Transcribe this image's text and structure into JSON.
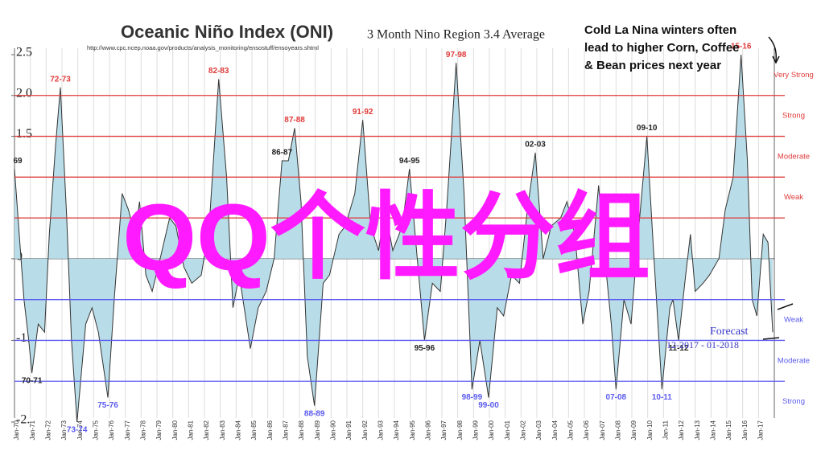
{
  "chart_data": {
    "type": "area",
    "title": "Oceanic Niño Index (ONI)",
    "subtitle": "3 Month Nino Region 3.4 Average",
    "source": "http://www.cpc.ncep.noaa.gov/products/analysis_monitoring/ensostuff/ensoyears.shtml",
    "callout": [
      "Cold La Nina winters often",
      "lead to higher Corn, Coffee",
      "& Bean prices next year"
    ],
    "watermark": "QQ个性分组",
    "forecast": {
      "label": "Forecast",
      "period": "12-2017 - 01-2018"
    },
    "series": [
      {
        "color": "#333333",
        "fill": "#b9dde8",
        "x": [
          1970.0,
          1970.3,
          1970.6,
          1970.9,
          1971.1,
          1971.5,
          1971.9,
          1972.2,
          1972.6,
          1972.9,
          1973.3,
          1973.6,
          1973.95,
          1974.5,
          1974.9,
          1975.3,
          1975.9,
          1976.3,
          1976.8,
          1977.2,
          1977.6,
          1977.9,
          1978.3,
          1978.7,
          1979.2,
          1979.8,
          1980.2,
          1980.7,
          1981.2,
          1981.8,
          1982.3,
          1982.9,
          1983.4,
          1983.8,
          1984.2,
          1984.9,
          1985.4,
          1985.9,
          1986.4,
          1986.9,
          1987.3,
          1987.7,
          1988.1,
          1988.5,
          1988.95,
          1989.5,
          1989.9,
          1990.5,
          1990.9,
          1991.5,
          1992.0,
          1992.5,
          1993.0,
          1993.4,
          1993.9,
          1994.5,
          1994.95,
          1995.4,
          1995.9,
          1996.4,
          1996.9,
          1997.3,
          1997.9,
          1998.4,
          1998.9,
          1999.4,
          1999.95,
          2000.5,
          2000.9,
          2001.4,
          2001.9,
          2002.4,
          2002.9,
          2003.4,
          2003.9,
          2004.5,
          2004.9,
          2005.4,
          2005.9,
          2006.3,
          2006.9,
          2007.3,
          2007.7,
          2008.0,
          2008.5,
          2008.95,
          2009.4,
          2009.95,
          2010.4,
          2010.9,
          2011.4,
          2011.6,
          2011.95,
          2012.4,
          2012.7,
          2013.0,
          2013.5,
          2013.9,
          2014.5,
          2014.9,
          2015.4,
          2015.9,
          2016.3,
          2016.6,
          2016.9,
          2017.3,
          2017.6,
          2017.9
        ],
        "values": [
          1.1,
          0.3,
          -0.5,
          -1.0,
          -1.4,
          -0.8,
          -0.9,
          0.3,
          1.4,
          2.1,
          0.5,
          -1.0,
          -2.0,
          -0.8,
          -0.6,
          -0.9,
          -1.7,
          -0.5,
          0.8,
          0.6,
          0.3,
          0.7,
          -0.2,
          -0.4,
          0.0,
          0.5,
          0.4,
          -0.1,
          -0.3,
          -0.2,
          0.4,
          2.2,
          1.0,
          -0.6,
          -0.2,
          -1.1,
          -0.6,
          -0.4,
          0.0,
          1.2,
          1.2,
          1.6,
          0.7,
          -1.2,
          -1.8,
          -0.3,
          -0.2,
          0.3,
          0.4,
          0.8,
          1.7,
          0.4,
          0.1,
          0.6,
          0.1,
          0.4,
          1.1,
          0.1,
          -1.0,
          -0.3,
          -0.4,
          0.6,
          2.4,
          0.8,
          -1.6,
          -1.0,
          -1.7,
          -0.6,
          -0.7,
          -0.2,
          -0.3,
          0.6,
          1.3,
          0.0,
          0.4,
          0.5,
          0.7,
          0.3,
          -0.8,
          -0.4,
          0.9,
          0.0,
          -0.8,
          -1.6,
          -0.5,
          -0.8,
          0.3,
          1.5,
          0.0,
          -1.6,
          -0.6,
          -0.5,
          -1.0,
          -0.2,
          0.3,
          -0.4,
          -0.3,
          -0.2,
          0.0,
          0.6,
          1.0,
          2.5,
          1.2,
          -0.5,
          -0.7,
          0.3,
          0.2,
          -0.9
        ]
      }
    ],
    "xlim": [
      1970,
      2018
    ],
    "xticks": [
      {
        "value": 1970,
        "label": "Jan-70"
      },
      {
        "value": 1971,
        "label": "Jan-71"
      },
      {
        "value": 1972,
        "label": "Jan-72"
      },
      {
        "value": 1973,
        "label": "Jan-73"
      },
      {
        "value": 1974,
        "label": "Jan-74"
      },
      {
        "value": 1975,
        "label": "Jan-75"
      },
      {
        "value": 1976,
        "label": "Jan-76"
      },
      {
        "value": 1977,
        "label": "Jan-77"
      },
      {
        "value": 1978,
        "label": "Jan-78"
      },
      {
        "value": 1979,
        "label": "Jan-79"
      },
      {
        "value": 1980,
        "label": "Jan-80"
      },
      {
        "value": 1981,
        "label": "Jan-81"
      },
      {
        "value": 1982,
        "label": "Jan-82"
      },
      {
        "value": 1983,
        "label": "Jan-83"
      },
      {
        "value": 1984,
        "label": "Jan-84"
      },
      {
        "value": 1985,
        "label": "Jan-85"
      },
      {
        "value": 1986,
        "label": "Jan-86"
      },
      {
        "value": 1987,
        "label": "Jan-87"
      },
      {
        "value": 1988,
        "label": "Jan-88"
      },
      {
        "value": 1989,
        "label": "Jan-89"
      },
      {
        "value": 1990,
        "label": "Jan-90"
      },
      {
        "value": 1991,
        "label": "Jan-91"
      },
      {
        "value": 1992,
        "label": "Jan-92"
      },
      {
        "value": 1993,
        "label": "Jan-93"
      },
      {
        "value": 1994,
        "label": "Jan-94"
      },
      {
        "value": 1995,
        "label": "Jan-95"
      },
      {
        "value": 1996,
        "label": "Jan-96"
      },
      {
        "value": 1997,
        "label": "Jan-97"
      },
      {
        "value": 1998,
        "label": "Jan-98"
      },
      {
        "value": 1999,
        "label": "Jan-99"
      },
      {
        "value": 2000,
        "label": "Jan-00"
      },
      {
        "value": 2001,
        "label": "Jan-01"
      },
      {
        "value": 2002,
        "label": "Jan-02"
      },
      {
        "value": 2003,
        "label": "Jan-03"
      },
      {
        "value": 2004,
        "label": "Jan-04"
      },
      {
        "value": 2005,
        "label": "Jan-05"
      },
      {
        "value": 2006,
        "label": "Jan-06"
      },
      {
        "value": 2007,
        "label": "Jan-07"
      },
      {
        "value": 2008,
        "label": "Jan-08"
      },
      {
        "value": 2009,
        "label": "Jan-09"
      },
      {
        "value": 2010,
        "label": "Jan-10"
      },
      {
        "value": 2011,
        "label": "Jan-11"
      },
      {
        "value": 2012,
        "label": "Jan-12"
      },
      {
        "value": 2013,
        "label": "Jan-13"
      },
      {
        "value": 2014,
        "label": "Jan-14"
      },
      {
        "value": 2015,
        "label": "Jan-15"
      },
      {
        "value": 2016,
        "label": "Jan-16"
      },
      {
        "value": 2017,
        "label": "Jan-17"
      }
    ],
    "ylim": [
      -2,
      2.5
    ],
    "yticks": [
      2.5,
      {
        "value": 2,
        "label": "2.0"
      },
      1.5,
      0,
      {
        "value": -1,
        "label": "-1."
      },
      {
        "value": -2,
        "label": "-2."
      }
    ],
    "grid": true,
    "thresholds": [
      {
        "value": 0.5,
        "color": "#e03a3a",
        "label": "Weak"
      },
      {
        "value": 1,
        "color": "#e03a3a",
        "label": "Moderate"
      },
      {
        "value": 1.5,
        "color": "#e03a3a",
        "label": "Strong"
      },
      {
        "value": 2,
        "color": "#e03a3a",
        "label": "Very Strong"
      },
      {
        "value": -0.5,
        "color": "#5b5bef",
        "label": "Weak"
      },
      {
        "value": -1,
        "color": "#5b5bef",
        "label": "Moderate"
      },
      {
        "value": -1.5,
        "color": "#5b5bef",
        "label": "Strong"
      }
    ],
    "peak_labels": [
      {
        "text": "69",
        "x": 1970.0,
        "y": 1.1,
        "color": "#222"
      },
      {
        "text": "72-73",
        "x": 1972.9,
        "y": 2.1,
        "color": "#e03a3a"
      },
      {
        "text": "82-83",
        "x": 1982.9,
        "y": 2.2,
        "color": "#e03a3a"
      },
      {
        "text": "86-87",
        "x": 1986.9,
        "y": 1.2,
        "color": "#222"
      },
      {
        "text": "87-88",
        "x": 1987.7,
        "y": 1.6,
        "color": "#e03a3a"
      },
      {
        "text": "91-92",
        "x": 1992.0,
        "y": 1.7,
        "color": "#e03a3a"
      },
      {
        "text": "94-95",
        "x": 1994.95,
        "y": 1.1,
        "color": "#222"
      },
      {
        "text": "97-98",
        "x": 1997.9,
        "y": 2.4,
        "color": "#e03a3a"
      },
      {
        "text": "02-03",
        "x": 2002.9,
        "y": 1.3,
        "color": "#222"
      },
      {
        "text": "09-10",
        "x": 2009.95,
        "y": 1.5,
        "color": "#222"
      },
      {
        "text": "15-16",
        "x": 2015.9,
        "y": 2.5,
        "color": "#e03a3a"
      },
      {
        "text": "70-71",
        "x": 1971.1,
        "y": -1.4,
        "color": "#222"
      },
      {
        "text": "73-74",
        "x": 1973.95,
        "y": -2.0,
        "color": "#5b5bef"
      },
      {
        "text": "75-76",
        "x": 1975.9,
        "y": -1.7,
        "color": "#5b5bef"
      },
      {
        "text": "88-89",
        "x": 1988.95,
        "y": -1.8,
        "color": "#5b5bef"
      },
      {
        "text": "95-96",
        "x": 1995.9,
        "y": -1.0,
        "color": "#222"
      },
      {
        "text": "98-99",
        "x": 1998.9,
        "y": -1.6,
        "color": "#5b5bef"
      },
      {
        "text": "99-00",
        "x": 1999.95,
        "y": -1.7,
        "color": "#5b5bef"
      },
      {
        "text": "07-08",
        "x": 2008.0,
        "y": -1.6,
        "color": "#5b5bef"
      },
      {
        "text": "10-11",
        "x": 2010.9,
        "y": -1.6,
        "color": "#5b5bef"
      },
      {
        "text": "11-12",
        "x": 2011.95,
        "y": -1.0,
        "color": "#222"
      }
    ]
  }
}
